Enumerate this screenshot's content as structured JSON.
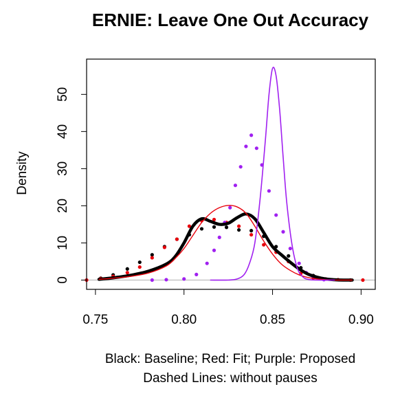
{
  "chart_data": {
    "type": "line",
    "title": "ERNIE: Leave One Out Accuracy",
    "xlabel": "",
    "ylabel": "Density",
    "caption": [
      "Black: Baseline; Red: Fit; Purple: Proposed",
      "Dashed Lines: without pauses"
    ],
    "xlim": [
      0.745,
      0.908
    ],
    "ylim": [
      -2.5,
      59.5
    ],
    "xticks": [
      0.75,
      0.8,
      0.85,
      0.9
    ],
    "xtick_labels": [
      "0.75",
      "0.80",
      "0.85",
      "0.90"
    ],
    "yticks": [
      0,
      10,
      20,
      30,
      40,
      50
    ],
    "ytick_labels": [
      "0",
      "10",
      "20",
      "30",
      "40",
      "50"
    ],
    "grid": false,
    "baseline": 0,
    "series": [
      {
        "name": "Baseline",
        "style": "solid",
        "color": "#000000",
        "x": [
          0.752,
          0.76,
          0.77,
          0.78,
          0.79,
          0.795,
          0.8,
          0.805,
          0.81,
          0.815,
          0.82,
          0.825,
          0.83,
          0.835,
          0.84,
          0.845,
          0.85,
          0.855,
          0.86,
          0.865,
          0.87,
          0.875,
          0.88,
          0.885,
          0.89,
          0.895
        ],
        "y": [
          0.2,
          0.6,
          1.3,
          2.4,
          4.3,
          6.3,
          10.0,
          14.5,
          16.5,
          15.8,
          15.0,
          15.3,
          16.8,
          17.8,
          16.5,
          12.8,
          9.0,
          6.8,
          4.8,
          3.0,
          1.6,
          0.8,
          0.3,
          0.1,
          0.0,
          0.0
        ]
      },
      {
        "name": "Baseline without pauses",
        "style": "dashed",
        "color": "#000000",
        "x": [
          0.753,
          0.76,
          0.768,
          0.775,
          0.782,
          0.789,
          0.796,
          0.803,
          0.81,
          0.817,
          0.824,
          0.831,
          0.838,
          0.845,
          0.852,
          0.859,
          0.866,
          0.873
        ],
        "y": [
          0.5,
          1.4,
          3.0,
          4.8,
          6.8,
          9.0,
          11.0,
          12.2,
          13.8,
          14.3,
          14.2,
          13.5,
          13.3,
          11.8,
          9.0,
          6.5,
          3.3,
          1.2
        ]
      },
      {
        "name": "Fit",
        "style": "solid",
        "color": "#e8000b",
        "x": [
          0.752,
          0.76,
          0.77,
          0.78,
          0.79,
          0.795,
          0.8,
          0.805,
          0.81,
          0.815,
          0.82,
          0.825,
          0.83,
          0.835,
          0.84,
          0.845,
          0.85,
          0.855,
          0.86,
          0.865,
          0.87,
          0.875,
          0.88,
          0.885,
          0.89,
          0.895
        ],
        "y": [
          0.2,
          0.5,
          1.0,
          1.9,
          3.8,
          5.8,
          8.5,
          12.0,
          15.5,
          18.0,
          19.5,
          20.1,
          19.7,
          18.0,
          14.5,
          10.5,
          7.0,
          4.3,
          2.6,
          1.4,
          0.7,
          0.3,
          0.1,
          0.0,
          0.0,
          0.0
        ]
      },
      {
        "name": "Fit without pauses",
        "style": "dashed",
        "color": "#e8000b",
        "x": [
          0.745,
          0.753,
          0.76,
          0.768,
          0.775,
          0.782,
          0.789,
          0.796,
          0.803,
          0.81,
          0.817,
          0.824,
          0.831,
          0.838,
          0.845,
          0.852,
          0.859,
          0.866,
          0.873,
          0.88,
          0.887,
          0.894,
          0.901
        ],
        "y": [
          0.0,
          0.4,
          1.0,
          2.0,
          3.5,
          6.0,
          8.8,
          11.0,
          14.5,
          16.0,
          16.3,
          15.5,
          14.5,
          12.2,
          9.5,
          7.5,
          5.0,
          1.8,
          0.6,
          0.3,
          0.1,
          0.0,
          0.0
        ]
      },
      {
        "name": "Proposed",
        "style": "solid",
        "color": "#a020f0",
        "x": [
          0.815,
          0.825,
          0.83,
          0.834,
          0.837,
          0.84,
          0.843,
          0.846,
          0.848,
          0.85,
          0.852,
          0.854,
          0.856,
          0.858,
          0.861,
          0.864,
          0.867,
          0.87,
          0.875,
          0.885
        ],
        "y": [
          0.0,
          0.0,
          0.3,
          1.5,
          4.5,
          10.0,
          22.0,
          38.0,
          50.0,
          57.0,
          55.0,
          46.0,
          33.0,
          21.0,
          9.5,
          3.2,
          0.9,
          0.2,
          0.0,
          0.0
        ]
      },
      {
        "name": "Proposed without pauses",
        "style": "dashed",
        "color": "#a020f0",
        "x": [
          0.782,
          0.79,
          0.8,
          0.807,
          0.813,
          0.817,
          0.82,
          0.823,
          0.826,
          0.829,
          0.832,
          0.835,
          0.838,
          0.841,
          0.844,
          0.848,
          0.852,
          0.856,
          0.86,
          0.865,
          0.869,
          0.873,
          0.879
        ],
        "y": [
          0.0,
          0.1,
          0.3,
          1.5,
          4.5,
          8.0,
          11.5,
          15.5,
          19.5,
          25.5,
          30.5,
          36.0,
          39.0,
          35.5,
          31.0,
          24.0,
          17.5,
          13.0,
          8.5,
          4.5,
          2.0,
          0.8,
          0.1
        ]
      }
    ]
  }
}
